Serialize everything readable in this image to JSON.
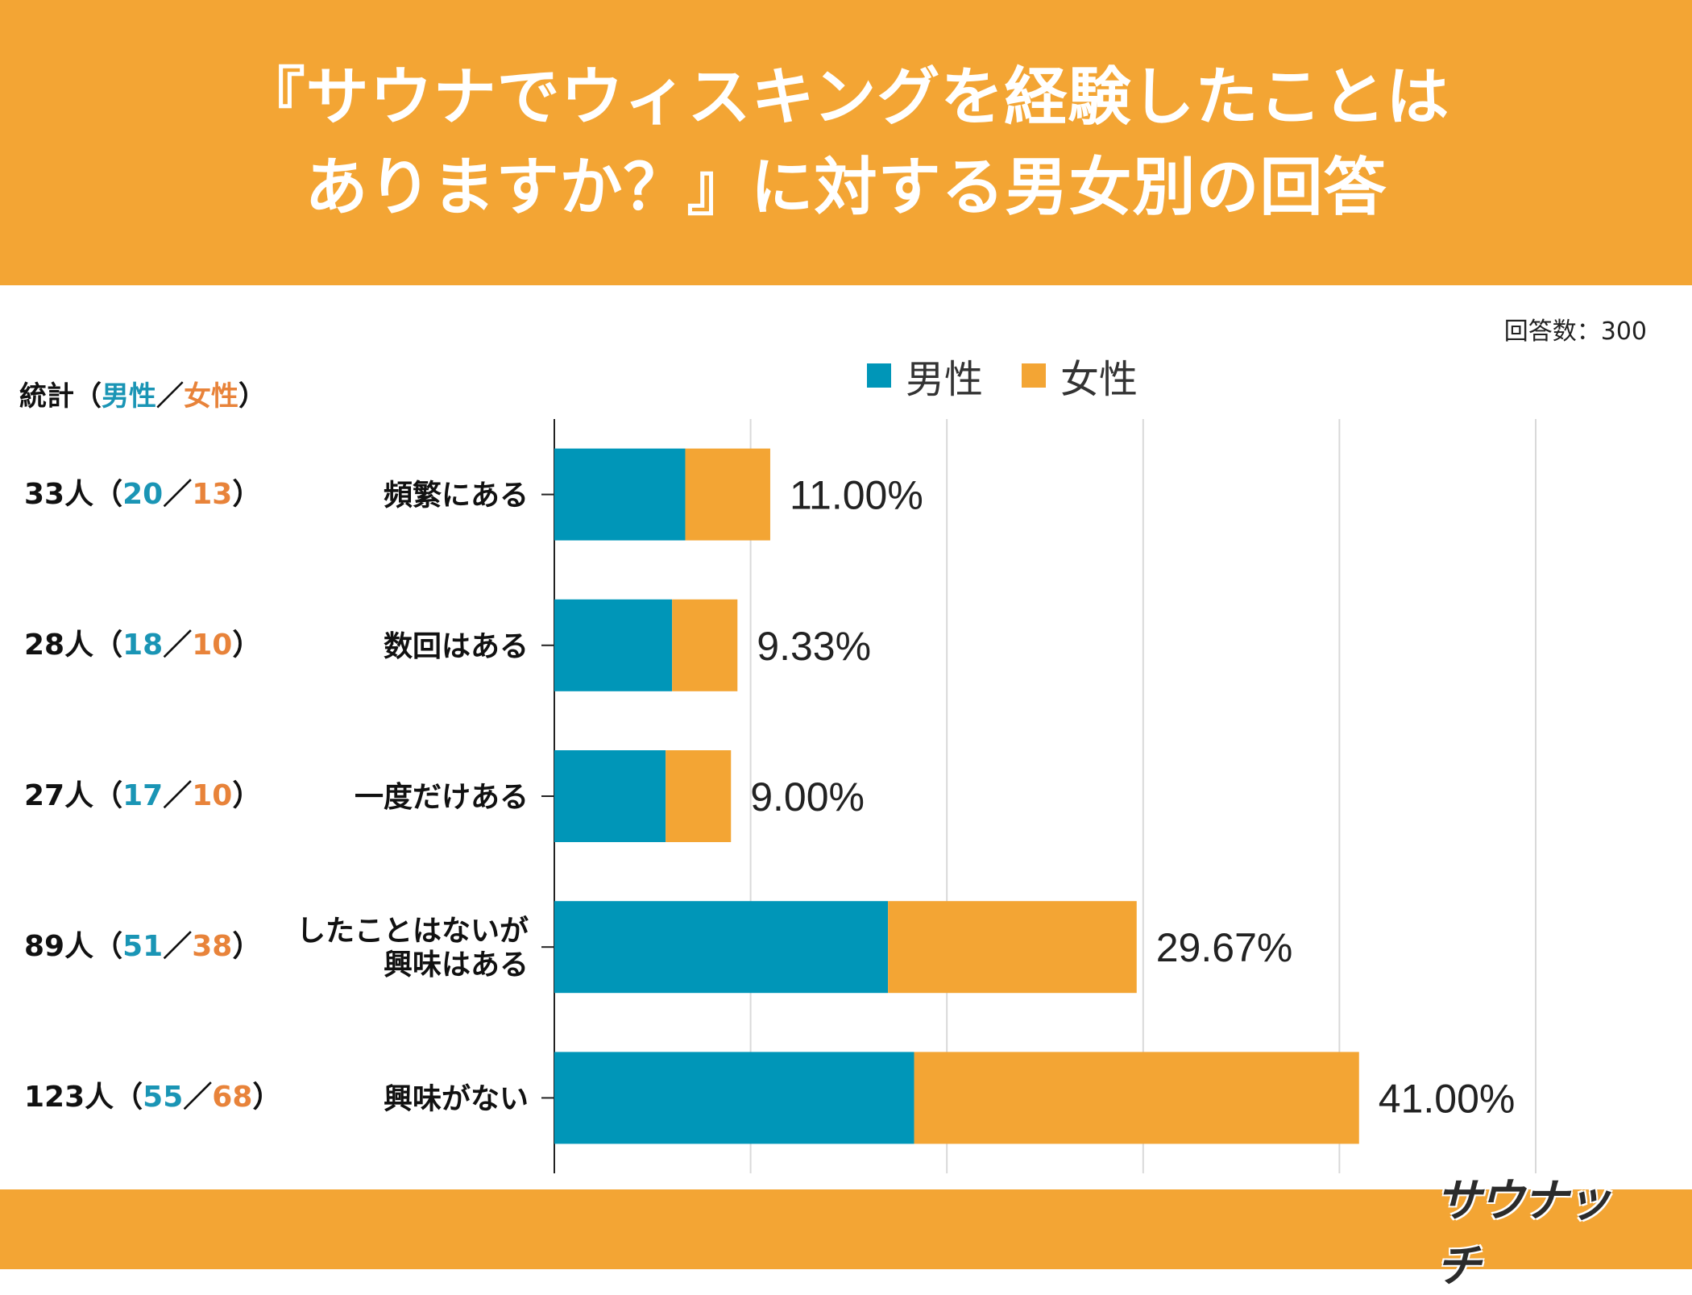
{
  "header": {
    "title": "『サウナでウィスキングを経験したことは\nありますか？』に対する男女別の回答"
  },
  "respondents_label": "回答数：300",
  "stats_header": {
    "label": "統計",
    "open": "（",
    "male": "男性",
    "sep": "／",
    "female": "女性",
    "close": "）"
  },
  "colors": {
    "male": "#0096b8",
    "female": "#f3a534",
    "accent": "#f3a534"
  },
  "logo": "サウナッチ",
  "chart_data": {
    "type": "bar",
    "orientation": "horizontal",
    "stacked": true,
    "legend": [
      "男性",
      "女性"
    ],
    "legend_position": "top",
    "categories": [
      "頻繁にある",
      "数回はある",
      "一度だけある",
      "したことはないが\n興味はある",
      "興味がない"
    ],
    "series": [
      {
        "name": "男性",
        "values": [
          6.67,
          6.0,
          5.67,
          17.0,
          18.33
        ]
      },
      {
        "name": "女性",
        "values": [
          4.33,
          3.33,
          3.33,
          12.67,
          22.67
        ]
      }
    ],
    "totals_labels": [
      "11.00%",
      "9.33%",
      "9.00%",
      "29.67%",
      "41.00%"
    ],
    "xlim": [
      0,
      50
    ],
    "grid": true
  },
  "stats": [
    {
      "total": "33人",
      "male": "20",
      "female": "13"
    },
    {
      "total": "28人",
      "male": "18",
      "female": "10"
    },
    {
      "total": "27人",
      "male": "17",
      "female": "10"
    },
    {
      "total": "89人",
      "male": "51",
      "female": "38"
    },
    {
      "total": "123人",
      "male": "55",
      "female": "68"
    }
  ]
}
